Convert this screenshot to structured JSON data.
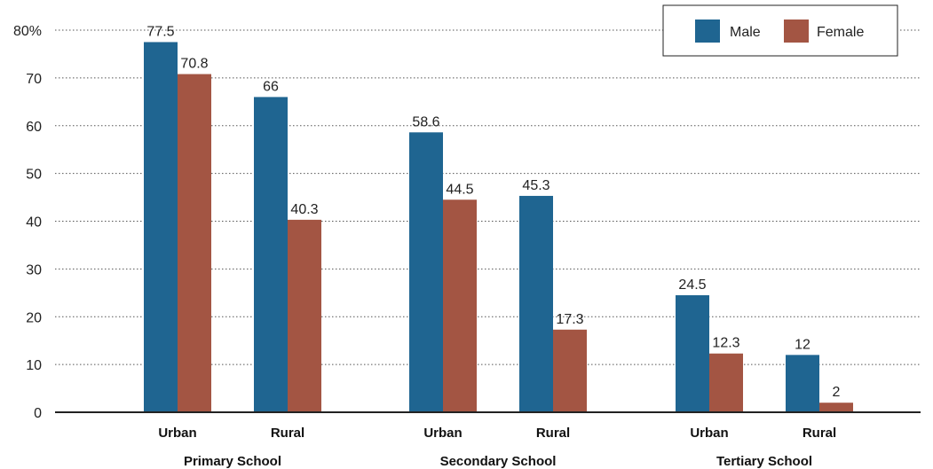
{
  "chart_data": {
    "type": "bar",
    "y_tick_labels": [
      "0",
      "10",
      "20",
      "30",
      "40",
      "50",
      "60",
      "70",
      "80%"
    ],
    "y_ticks": [
      0,
      10,
      20,
      30,
      40,
      50,
      60,
      70,
      80
    ],
    "ylim": [
      0,
      80
    ],
    "grid": true,
    "legend_position": "top-right",
    "groups": [
      {
        "label": "Primary School",
        "categories": [
          "Urban",
          "Rural"
        ]
      },
      {
        "label": "Secondary School",
        "categories": [
          "Urban",
          "Rural"
        ]
      },
      {
        "label": "Tertiary School",
        "categories": [
          "Urban",
          "Rural"
        ]
      }
    ],
    "series": [
      {
        "name": "Male",
        "color": "#1f6591",
        "values": [
          77.5,
          66,
          58.6,
          45.3,
          24.5,
          12
        ],
        "labels": [
          "77.5",
          "66",
          "58.6",
          "45.3",
          "24.5",
          "12"
        ]
      },
      {
        "name": "Female",
        "color": "#a35543",
        "values": [
          70.8,
          40.3,
          44.5,
          17.3,
          12.3,
          2
        ],
        "labels": [
          "70.8",
          "40.3",
          "44.5",
          "17.3",
          "12.3",
          "2"
        ]
      }
    ]
  }
}
